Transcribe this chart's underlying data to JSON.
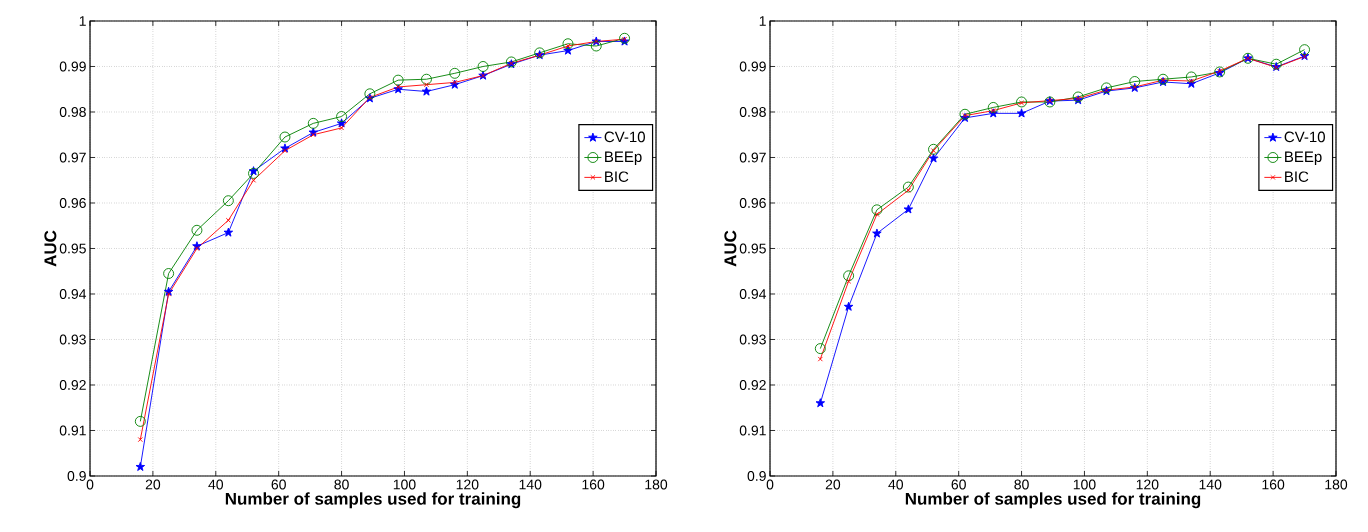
{
  "chart_data": [
    {
      "type": "line",
      "xlabel": "Number of samples used for training",
      "ylabel": "AUC",
      "x": [
        16,
        25,
        34,
        44,
        52,
        62,
        71,
        80,
        89,
        98,
        107,
        116,
        125,
        134,
        143,
        152,
        161,
        170
      ],
      "series": [
        {
          "name": "CV-10",
          "color": "#0000ff",
          "marker": "star",
          "values": [
            0.902,
            0.9405,
            0.9505,
            0.9535,
            0.967,
            0.972,
            0.9755,
            0.9775,
            0.983,
            0.985,
            0.9845,
            0.986,
            0.988,
            0.9905,
            0.9925,
            0.9935,
            0.9955,
            0.9955
          ]
        },
        {
          "name": "BEEp",
          "color": "#008000",
          "marker": "circle",
          "values": [
            0.912,
            0.9445,
            0.954,
            0.9605,
            0.9665,
            0.9745,
            0.9775,
            0.979,
            0.984,
            0.987,
            0.9872,
            0.9885,
            0.99,
            0.991,
            0.993,
            0.995,
            0.9945,
            0.9962
          ]
        },
        {
          "name": "BIC",
          "color": "#ff0000",
          "marker": "cross",
          "values": [
            0.908,
            0.94,
            0.95,
            0.9562,
            0.965,
            0.9715,
            0.975,
            0.9765,
            0.9832,
            0.9855,
            0.986,
            0.9865,
            0.988,
            0.9907,
            0.9925,
            0.9945,
            0.9955,
            0.996
          ]
        }
      ],
      "xlim": [
        0,
        180
      ],
      "ylim": [
        0.9,
        1
      ],
      "xticks": [
        0,
        20,
        40,
        60,
        80,
        100,
        120,
        140,
        160,
        180
      ],
      "yticks": [
        0.9,
        0.91,
        0.92,
        0.93,
        0.94,
        0.95,
        0.96,
        0.97,
        0.98,
        0.99,
        1
      ],
      "grid": true,
      "legend": "right",
      "line_style": "solid"
    },
    {
      "type": "line",
      "xlabel": "Number of samples used for training",
      "ylabel": "AUC",
      "x": [
        16,
        25,
        34,
        44,
        52,
        62,
        71,
        80,
        89,
        98,
        107,
        116,
        125,
        134,
        143,
        152,
        161,
        170
      ],
      "series": [
        {
          "name": "CV-10",
          "color": "#0000ff",
          "marker": "star",
          "values": [
            0.916,
            0.9372,
            0.9533,
            0.9586,
            0.9698,
            0.9787,
            0.9797,
            0.9797,
            0.9824,
            0.9826,
            0.9846,
            0.9853,
            0.9866,
            0.9862,
            0.9886,
            0.9918,
            0.9899,
            0.9923
          ]
        },
        {
          "name": "BEEp",
          "color": "#008000",
          "marker": "circle",
          "values": [
            0.928,
            0.944,
            0.9585,
            0.9635,
            0.9718,
            0.9795,
            0.981,
            0.9822,
            0.9822,
            0.9833,
            0.9853,
            0.9867,
            0.9872,
            0.9877,
            0.9888,
            0.9918,
            0.9905,
            0.9937
          ]
        },
        {
          "name": "BIC",
          "color": "#ff0000",
          "marker": "cross",
          "values": [
            0.9257,
            0.9428,
            0.9575,
            0.9628,
            0.9715,
            0.9792,
            0.9803,
            0.982,
            0.9825,
            0.983,
            0.9848,
            0.9855,
            0.987,
            0.9868,
            0.989,
            0.9918,
            0.9898,
            0.9922
          ]
        }
      ],
      "xlim": [
        0,
        180
      ],
      "ylim": [
        0.9,
        1
      ],
      "xticks": [
        0,
        20,
        40,
        60,
        80,
        100,
        120,
        140,
        160,
        180
      ],
      "yticks": [
        0.9,
        0.91,
        0.92,
        0.93,
        0.94,
        0.95,
        0.96,
        0.97,
        0.98,
        0.99,
        1
      ],
      "grid": true,
      "legend": "right",
      "line_style": "solid"
    }
  ]
}
